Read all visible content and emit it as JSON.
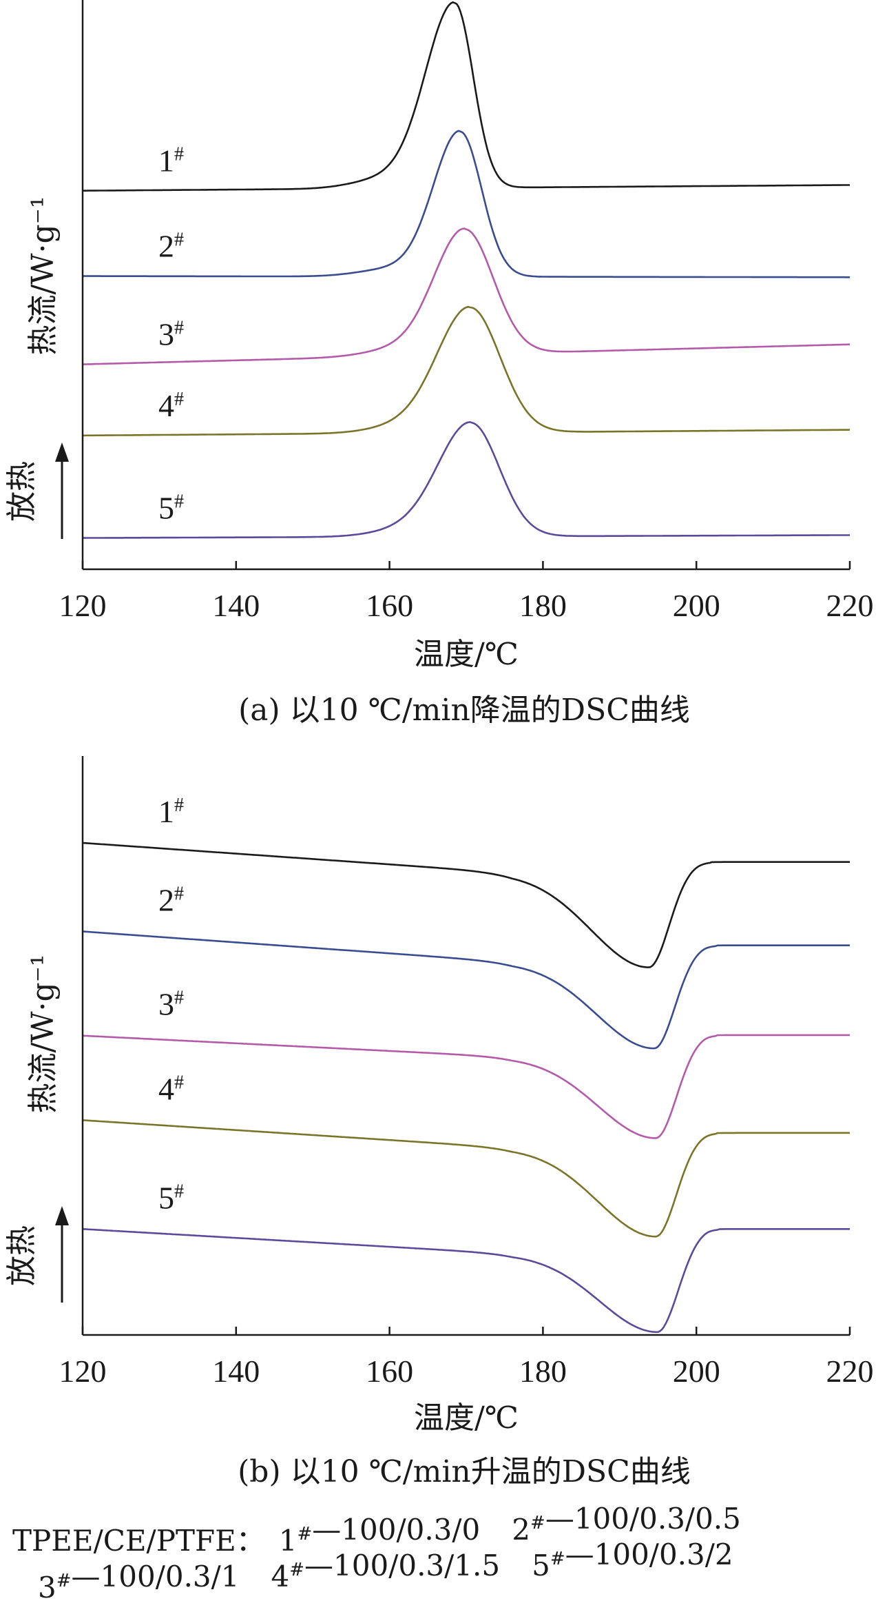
{
  "chart_data": [
    {
      "type": "line",
      "id": "a",
      "caption": "(a) 以10 ℃/min降温的DSC曲线",
      "xlabel": "温度/℃",
      "ylabel": "热流/W·g⁻¹",
      "exo_label": "放热",
      "xlim": [
        120,
        220
      ],
      "xticks": [
        120,
        140,
        160,
        180,
        200,
        220
      ],
      "grid": false,
      "legend": "inline labels left of curves",
      "series": [
        {
          "name": "1#",
          "color": "#1a1a1a",
          "baseline": 0.665,
          "end": 0.675,
          "peak_x": 168.5,
          "peak_h": 0.325,
          "width_left": 3.8,
          "width_right": 2.4
        },
        {
          "name": "2#",
          "color": "#3a4c90",
          "baseline": 0.515,
          "end": 0.513,
          "peak_x": 169.2,
          "peak_h": 0.255,
          "width_left": 3.5,
          "width_right": 2.8
        },
        {
          "name": "3#",
          "color": "#b35aa8",
          "baseline": 0.36,
          "end": 0.395,
          "peak_x": 169.8,
          "peak_h": 0.22,
          "width_left": 4.0,
          "width_right": 3.7
        },
        {
          "name": "4#",
          "color": "#7a7428",
          "baseline": 0.235,
          "end": 0.245,
          "peak_x": 170.5,
          "peak_h": 0.22,
          "width_left": 4.3,
          "width_right": 3.9
        },
        {
          "name": "5#",
          "color": "#5b4a9a",
          "baseline": 0.055,
          "end": 0.06,
          "peak_x": 170.6,
          "peak_h": 0.2,
          "width_left": 4.3,
          "width_right": 3.7
        }
      ]
    },
    {
      "type": "line",
      "id": "b",
      "caption": "(b) 以10 ℃/min升温的DSC曲线",
      "xlabel": "温度/℃",
      "ylabel": "热流/W·g⁻¹",
      "exo_label": "放热",
      "xlim": [
        120,
        220
      ],
      "xticks": [
        120,
        140,
        160,
        180,
        200,
        220
      ],
      "grid": false,
      "legend": "inline labels left of curves",
      "series": [
        {
          "name": "1#",
          "color": "#1a1a1a",
          "start": 0.85,
          "pre": 0.798,
          "dip_x": 193.8,
          "dip_y": 0.635,
          "end": 0.817
        },
        {
          "name": "2#",
          "color": "#3a4c90",
          "start": 0.697,
          "pre": 0.644,
          "dip_x": 194.5,
          "dip_y": 0.495,
          "end": 0.673
        },
        {
          "name": "3#",
          "color": "#b35aa8",
          "start": 0.517,
          "pre": 0.48,
          "dip_x": 194.7,
          "dip_y": 0.34,
          "end": 0.518
        },
        {
          "name": "4#",
          "color": "#7a7428",
          "start": 0.371,
          "pre": 0.323,
          "dip_x": 194.7,
          "dip_y": 0.17,
          "end": 0.349
        },
        {
          "name": "5#",
          "color": "#5b4a9a",
          "start": 0.183,
          "pre": 0.14,
          "dip_x": 194.9,
          "dip_y": 0.005,
          "end": 0.183
        }
      ]
    }
  ],
  "legend_note": {
    "line1_prefix": "TPEE/CE/PTFE：",
    "entries": [
      {
        "label": "1#",
        "value": "—100/0.3/0"
      },
      {
        "label": "2#",
        "value": "—100/0.3/0.5"
      },
      {
        "label": "3#",
        "value": "—100/0.3/1"
      },
      {
        "label": "4#",
        "value": "—100/0.3/1.5"
      },
      {
        "label": "5#",
        "value": "—100/0.3/2"
      }
    ]
  }
}
